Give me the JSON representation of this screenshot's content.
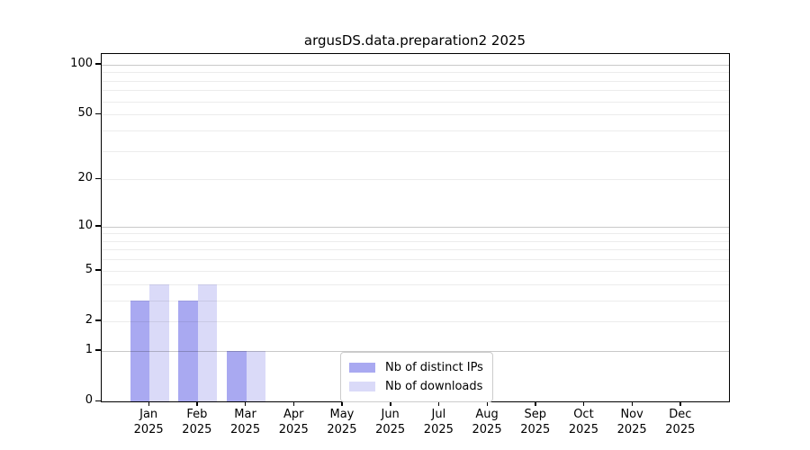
{
  "chart_data": {
    "type": "bar",
    "title": "argusDS.data.preparation2 2025",
    "categories": [
      "Jan",
      "Feb",
      "Mar",
      "Apr",
      "May",
      "Jun",
      "Jul",
      "Aug",
      "Sep",
      "Oct",
      "Nov",
      "Dec"
    ],
    "category_sublabel": "2025",
    "series": [
      {
        "name": "Nb of distinct IPs",
        "color": "#a9a9f1",
        "values": [
          3,
          3,
          1,
          0,
          0,
          0,
          0,
          0,
          0,
          0,
          0,
          0
        ]
      },
      {
        "name": "Nb of downloads",
        "color": "#dadaf8",
        "values": [
          4,
          4,
          1,
          0,
          0,
          0,
          0,
          0,
          0,
          0,
          0,
          0
        ]
      }
    ],
    "yscale": "log1p",
    "ylim": [
      0,
      116
    ],
    "yticks": [
      0,
      1,
      2,
      5,
      10,
      20,
      50,
      100
    ],
    "major_gridlines": [
      1,
      10,
      100
    ],
    "minor_gridlines": [
      2,
      3,
      4,
      5,
      6,
      7,
      8,
      9,
      20,
      30,
      40,
      50,
      60,
      70,
      80,
      90
    ],
    "grid": "horizontal-only",
    "legend": {
      "position": "lower-center",
      "labels": [
        "Nb of distinct IPs",
        "Nb of downloads"
      ]
    }
  },
  "colors": {
    "background": "#ffffff",
    "spine": "#000000",
    "grid_major": "#c9c9c9",
    "grid_minor": "#ececec",
    "legend_border": "#cccccc",
    "text": "#000000"
  }
}
